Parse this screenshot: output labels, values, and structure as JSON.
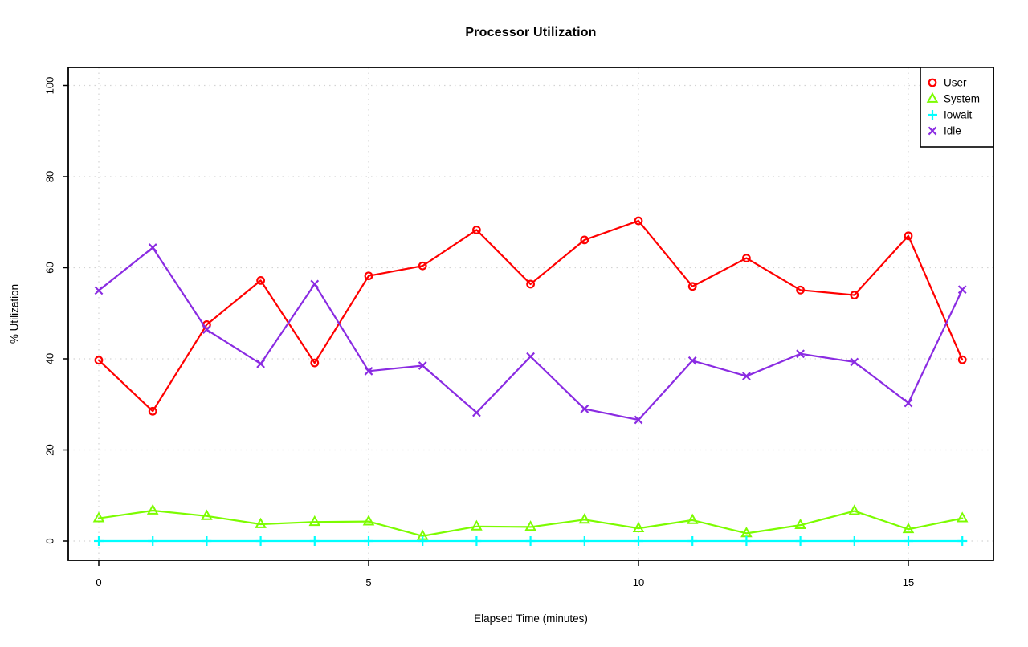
{
  "window": {
    "background": "#ffffff"
  },
  "chart_data": {
    "type": "line",
    "title": "Processor Utilization",
    "xlabel": "Elapsed Time (minutes)",
    "ylabel": "% Utilization",
    "x": [
      0,
      1,
      2,
      3,
      4,
      5,
      6,
      7,
      8,
      9,
      10,
      11,
      12,
      13,
      14,
      15,
      16
    ],
    "xticks": [
      0,
      5,
      10,
      15
    ],
    "yticks": [
      0,
      20,
      40,
      60,
      80,
      100
    ],
    "xlim": [
      -0.6,
      16.6
    ],
    "ylim": [
      -4,
      104
    ],
    "grid": "dotted-both-axes",
    "grid_color": "#d4d4d4",
    "legend_position": "top-right",
    "series": [
      {
        "name": "User",
        "color": "#ff0000",
        "marker": "circle",
        "values": [
          39.7,
          28.5,
          47.5,
          57.2,
          39.1,
          58.2,
          60.4,
          68.3,
          56.4,
          66.1,
          70.3,
          55.9,
          62.1,
          55.1,
          54.0,
          67.0,
          39.8
        ]
      },
      {
        "name": "System",
        "color": "#7cfc00",
        "marker": "triangle",
        "values": [
          5.0,
          6.7,
          5.5,
          3.7,
          4.2,
          4.3,
          1.1,
          3.2,
          3.1,
          4.7,
          2.8,
          4.6,
          1.7,
          3.5,
          6.6,
          2.6,
          5.0
        ]
      },
      {
        "name": "Iowait",
        "color": "#00ffff",
        "marker": "plus",
        "values": [
          0,
          0,
          0,
          0,
          0,
          0,
          0,
          0,
          0,
          0,
          0,
          0,
          0,
          0,
          0,
          0,
          0
        ]
      },
      {
        "name": "Idle",
        "color": "#8a2be2",
        "marker": "x",
        "values": [
          55.0,
          64.4,
          46.4,
          38.9,
          56.4,
          37.3,
          38.5,
          28.2,
          40.5,
          29.0,
          26.6,
          39.6,
          36.2,
          41.1,
          39.3,
          30.3,
          55.2
        ]
      }
    ]
  }
}
